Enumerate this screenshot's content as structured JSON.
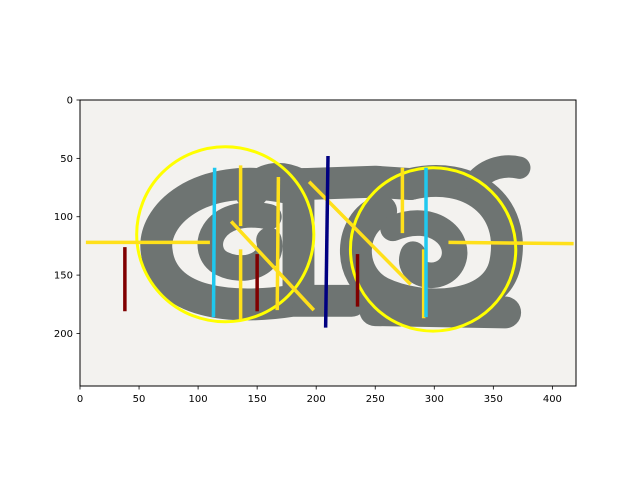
{
  "chart_data": {
    "type": "image_annotation",
    "title": "",
    "xlabel": "",
    "ylabel": "",
    "xlim": [
      0,
      420
    ],
    "ylim": [
      245,
      0
    ],
    "y_inverted": true,
    "grid": false,
    "xticks": [
      0,
      50,
      100,
      150,
      200,
      250,
      300,
      350,
      400
    ],
    "yticks": [
      0,
      50,
      100,
      150,
      200
    ],
    "background_image": {
      "description_icon": "grey-jade-double-spiral-ornament",
      "extent": {
        "x": [
          0,
          420
        ],
        "y": [
          0,
          245
        ]
      },
      "backdrop_color": "#f3f2ef",
      "object_color": "#6e7472"
    },
    "circles": [
      {
        "cx": 123,
        "cy": 115,
        "r": 75,
        "color": "#ffff00"
      },
      {
        "cx": 299,
        "cy": 128,
        "r": 70,
        "color": "#ffff00"
      }
    ],
    "segments": [
      {
        "x1": 5,
        "y1": 122,
        "x2": 110,
        "y2": 122,
        "color": "#ffe01a"
      },
      {
        "x1": 312,
        "y1": 122,
        "x2": 418,
        "y2": 123,
        "color": "#ffe01a"
      },
      {
        "x1": 136,
        "y1": 56,
        "x2": 136,
        "y2": 108,
        "color": "#ffe01a"
      },
      {
        "x1": 136,
        "y1": 128,
        "x2": 136,
        "y2": 188,
        "color": "#ffe01a"
      },
      {
        "x1": 168,
        "y1": 66,
        "x2": 167,
        "y2": 180,
        "color": "#ffe01a"
      },
      {
        "x1": 128,
        "y1": 104,
        "x2": 198,
        "y2": 180,
        "color": "#ffe01a"
      },
      {
        "x1": 194,
        "y1": 70,
        "x2": 280,
        "y2": 158,
        "color": "#ffe01a"
      },
      {
        "x1": 273,
        "y1": 58,
        "x2": 273,
        "y2": 114,
        "color": "#ffe01a"
      },
      {
        "x1": 291,
        "y1": 128,
        "x2": 291,
        "y2": 187,
        "color": "#ffe01a"
      },
      {
        "x1": 114,
        "y1": 58,
        "x2": 113,
        "y2": 186,
        "color": "#1fc8ef"
      },
      {
        "x1": 293,
        "y1": 58,
        "x2": 293,
        "y2": 186,
        "color": "#1fc8ef"
      },
      {
        "x1": 210,
        "y1": 48,
        "x2": 208,
        "y2": 195,
        "color": "#000080"
      },
      {
        "x1": 38,
        "y1": 126,
        "x2": 38,
        "y2": 181,
        "color": "#800000"
      },
      {
        "x1": 150,
        "y1": 132,
        "x2": 150,
        "y2": 181,
        "color": "#800000"
      },
      {
        "x1": 235,
        "y1": 132,
        "x2": 235,
        "y2": 177,
        "color": "#800000"
      }
    ]
  }
}
